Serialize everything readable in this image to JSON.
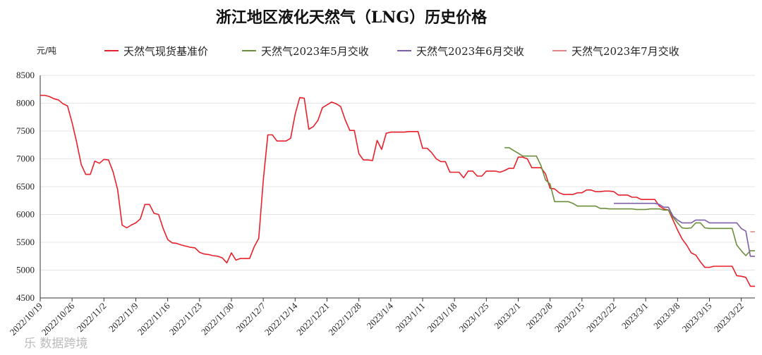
{
  "chart_data": {
    "type": "line",
    "title": "浙江地区液化天然气（LNG）历史价格",
    "unit_label": "元/吨",
    "ylim": [
      4500,
      8500
    ],
    "ytick_values": [
      4500,
      5000,
      5500,
      6000,
      6500,
      7000,
      7500,
      8000,
      8500
    ],
    "ytick_labels": [
      "4500",
      "5000",
      "5500",
      "6000",
      "6500",
      "7000",
      "7500",
      "8000",
      "8500"
    ],
    "xlim": [
      "2022-10-19",
      "2023-03-25"
    ],
    "xtick_labels": [
      "2022/10/19",
      "2022/10/26",
      "2022/11/2",
      "2022/11/9",
      "2022/11/16",
      "2022/11/23",
      "2022/11/30",
      "2022/12/7",
      "2022/12/14",
      "2022/12/21",
      "2022/12/28",
      "2023/1/4",
      "2023/1/11",
      "2023/1/18",
      "2023/1/25",
      "2023/2/1",
      "2023/2/8",
      "2023/2/15",
      "2023/2/22",
      "2023/3/1",
      "2023/3/8",
      "2023/3/15",
      "2023/3/22"
    ],
    "xtick_dates": [
      "2022-10-19",
      "2022-10-26",
      "2022-11-02",
      "2022-11-09",
      "2022-11-16",
      "2022-11-23",
      "2022-11-30",
      "2022-12-07",
      "2022-12-14",
      "2022-12-21",
      "2022-12-28",
      "2023-01-04",
      "2023-01-11",
      "2023-01-18",
      "2023-01-25",
      "2023-02-01",
      "2023-02-08",
      "2023-02-15",
      "2023-02-22",
      "2023-03-01",
      "2023-03-08",
      "2023-03-15",
      "2023-03-22"
    ],
    "grid": true,
    "legend_position": "top",
    "series": [
      {
        "name": "天然气现货基准价",
        "color": "#e8202a",
        "points": [
          [
            "2022-10-19",
            8140
          ],
          [
            "2022-10-20",
            8140
          ],
          [
            "2022-10-21",
            8120
          ],
          [
            "2022-10-22",
            8080
          ],
          [
            "2022-10-23",
            8060
          ],
          [
            "2022-10-24",
            7990
          ],
          [
            "2022-10-25",
            7950
          ],
          [
            "2022-10-26",
            7650
          ],
          [
            "2022-10-27",
            7300
          ],
          [
            "2022-10-28",
            6900
          ],
          [
            "2022-10-29",
            6720
          ],
          [
            "2022-10-30",
            6720
          ],
          [
            "2022-10-31",
            6960
          ],
          [
            "2022-11-01",
            6920
          ],
          [
            "2022-11-02",
            6990
          ],
          [
            "2022-11-03",
            6980
          ],
          [
            "2022-11-04",
            6770
          ],
          [
            "2022-11-05",
            6450
          ],
          [
            "2022-11-06",
            5810
          ],
          [
            "2022-11-07",
            5760
          ],
          [
            "2022-11-08",
            5810
          ],
          [
            "2022-11-09",
            5850
          ],
          [
            "2022-11-10",
            5920
          ],
          [
            "2022-11-11",
            6180
          ],
          [
            "2022-11-12",
            6180
          ],
          [
            "2022-11-13",
            6020
          ],
          [
            "2022-11-14",
            6000
          ],
          [
            "2022-11-15",
            5750
          ],
          [
            "2022-11-16",
            5550
          ],
          [
            "2022-11-17",
            5490
          ],
          [
            "2022-11-18",
            5480
          ],
          [
            "2022-11-19",
            5450
          ],
          [
            "2022-11-20",
            5430
          ],
          [
            "2022-11-21",
            5410
          ],
          [
            "2022-11-22",
            5400
          ],
          [
            "2022-11-23",
            5320
          ],
          [
            "2022-11-24",
            5290
          ],
          [
            "2022-11-25",
            5280
          ],
          [
            "2022-11-26",
            5260
          ],
          [
            "2022-11-27",
            5250
          ],
          [
            "2022-11-28",
            5220
          ],
          [
            "2022-11-29",
            5130
          ],
          [
            "2022-11-30",
            5310
          ],
          [
            "2022-12-01",
            5180
          ],
          [
            "2022-12-02",
            5210
          ],
          [
            "2022-12-03",
            5210
          ],
          [
            "2022-12-04",
            5210
          ],
          [
            "2022-12-05",
            5420
          ],
          [
            "2022-12-06",
            5570
          ],
          [
            "2022-12-07",
            6620
          ],
          [
            "2022-12-08",
            7430
          ],
          [
            "2022-12-09",
            7430
          ],
          [
            "2022-12-10",
            7320
          ],
          [
            "2022-12-11",
            7320
          ],
          [
            "2022-12-12",
            7320
          ],
          [
            "2022-12-13",
            7370
          ],
          [
            "2022-12-14",
            7800
          ],
          [
            "2022-12-15",
            8100
          ],
          [
            "2022-12-16",
            8090
          ],
          [
            "2022-12-17",
            7530
          ],
          [
            "2022-12-18",
            7580
          ],
          [
            "2022-12-19",
            7690
          ],
          [
            "2022-12-20",
            7920
          ],
          [
            "2022-12-21",
            7970
          ],
          [
            "2022-12-22",
            8020
          ],
          [
            "2022-12-23",
            7990
          ],
          [
            "2022-12-24",
            7940
          ],
          [
            "2022-12-25",
            7700
          ],
          [
            "2022-12-26",
            7510
          ],
          [
            "2022-12-27",
            7510
          ],
          [
            "2022-12-28",
            7090
          ],
          [
            "2022-12-29",
            6980
          ],
          [
            "2022-12-30",
            6980
          ],
          [
            "2022-12-31",
            6970
          ],
          [
            "2023-01-01",
            7330
          ],
          [
            "2023-01-02",
            7170
          ],
          [
            "2023-01-03",
            7460
          ],
          [
            "2023-01-04",
            7480
          ],
          [
            "2023-01-05",
            7480
          ],
          [
            "2023-01-06",
            7480
          ],
          [
            "2023-01-07",
            7480
          ],
          [
            "2023-01-08",
            7490
          ],
          [
            "2023-01-09",
            7490
          ],
          [
            "2023-01-10",
            7490
          ],
          [
            "2023-01-11",
            7190
          ],
          [
            "2023-01-12",
            7190
          ],
          [
            "2023-01-13",
            7110
          ],
          [
            "2023-01-14",
            7000
          ],
          [
            "2023-01-15",
            6950
          ],
          [
            "2023-01-16",
            6950
          ],
          [
            "2023-01-17",
            6760
          ],
          [
            "2023-01-18",
            6760
          ],
          [
            "2023-01-19",
            6760
          ],
          [
            "2023-01-20",
            6660
          ],
          [
            "2023-01-21",
            6780
          ],
          [
            "2023-01-22",
            6780
          ],
          [
            "2023-01-23",
            6690
          ],
          [
            "2023-01-24",
            6690
          ],
          [
            "2023-01-25",
            6780
          ],
          [
            "2023-01-26",
            6780
          ],
          [
            "2023-01-27",
            6780
          ],
          [
            "2023-01-28",
            6760
          ],
          [
            "2023-01-29",
            6790
          ],
          [
            "2023-01-30",
            6830
          ],
          [
            "2023-01-31",
            6830
          ],
          [
            "2023-02-01",
            7030
          ],
          [
            "2023-02-02",
            7030
          ],
          [
            "2023-02-03",
            7000
          ],
          [
            "2023-02-04",
            6840
          ],
          [
            "2023-02-05",
            6840
          ],
          [
            "2023-02-06",
            6840
          ],
          [
            "2023-02-07",
            6730
          ],
          [
            "2023-02-08",
            6470
          ],
          [
            "2023-02-09",
            6460
          ],
          [
            "2023-02-10",
            6390
          ],
          [
            "2023-02-11",
            6360
          ],
          [
            "2023-02-12",
            6360
          ],
          [
            "2023-02-13",
            6360
          ],
          [
            "2023-02-14",
            6390
          ],
          [
            "2023-02-15",
            6390
          ],
          [
            "2023-02-16",
            6440
          ],
          [
            "2023-02-17",
            6440
          ],
          [
            "2023-02-18",
            6410
          ],
          [
            "2023-02-19",
            6410
          ],
          [
            "2023-02-20",
            6420
          ],
          [
            "2023-02-21",
            6420
          ],
          [
            "2023-02-22",
            6410
          ],
          [
            "2023-02-23",
            6350
          ],
          [
            "2023-02-24",
            6350
          ],
          [
            "2023-02-25",
            6350
          ],
          [
            "2023-02-26",
            6310
          ],
          [
            "2023-02-27",
            6310
          ],
          [
            "2023-02-28",
            6270
          ],
          [
            "2023-03-01",
            6270
          ],
          [
            "2023-03-02",
            6270
          ],
          [
            "2023-03-03",
            6270
          ],
          [
            "2023-03-04",
            6150
          ],
          [
            "2023-03-05",
            6100
          ],
          [
            "2023-03-06",
            6080
          ],
          [
            "2023-03-07",
            5900
          ],
          [
            "2023-03-08",
            5720
          ],
          [
            "2023-03-09",
            5560
          ],
          [
            "2023-03-10",
            5450
          ],
          [
            "2023-03-11",
            5310
          ],
          [
            "2023-03-12",
            5270
          ],
          [
            "2023-03-13",
            5150
          ],
          [
            "2023-03-14",
            5050
          ],
          [
            "2023-03-15",
            5050
          ],
          [
            "2023-03-16",
            5070
          ],
          [
            "2023-03-17",
            5070
          ],
          [
            "2023-03-18",
            5070
          ],
          [
            "2023-03-19",
            5070
          ],
          [
            "2023-03-20",
            5070
          ],
          [
            "2023-03-21",
            4900
          ],
          [
            "2023-03-22",
            4890
          ],
          [
            "2023-03-23",
            4870
          ],
          [
            "2023-03-24",
            4710
          ],
          [
            "2023-03-25",
            4710
          ]
        ]
      },
      {
        "name": "天然气2023年5月交收",
        "color": "#6b8e3a",
        "points": [
          [
            "2023-01-29",
            7200
          ],
          [
            "2023-01-30",
            7200
          ],
          [
            "2023-01-31",
            7150
          ],
          [
            "2023-02-01",
            7100
          ],
          [
            "2023-02-02",
            7050
          ],
          [
            "2023-02-03",
            7050
          ],
          [
            "2023-02-04",
            7050
          ],
          [
            "2023-02-05",
            7050
          ],
          [
            "2023-02-06",
            6880
          ],
          [
            "2023-02-07",
            6620
          ],
          [
            "2023-02-08",
            6550
          ],
          [
            "2023-02-09",
            6230
          ],
          [
            "2023-02-10",
            6230
          ],
          [
            "2023-02-11",
            6230
          ],
          [
            "2023-02-12",
            6230
          ],
          [
            "2023-02-13",
            6200
          ],
          [
            "2023-02-14",
            6150
          ],
          [
            "2023-02-15",
            6150
          ],
          [
            "2023-02-16",
            6150
          ],
          [
            "2023-02-17",
            6150
          ],
          [
            "2023-02-18",
            6150
          ],
          [
            "2023-02-19",
            6110
          ],
          [
            "2023-02-20",
            6110
          ],
          [
            "2023-02-21",
            6100
          ],
          [
            "2023-02-22",
            6100
          ],
          [
            "2023-02-23",
            6100
          ],
          [
            "2023-02-24",
            6100
          ],
          [
            "2023-02-25",
            6100
          ],
          [
            "2023-02-26",
            6100
          ],
          [
            "2023-02-27",
            6090
          ],
          [
            "2023-02-28",
            6090
          ],
          [
            "2023-03-01",
            6090
          ],
          [
            "2023-03-02",
            6100
          ],
          [
            "2023-03-03",
            6100
          ],
          [
            "2023-03-04",
            6100
          ],
          [
            "2023-03-05",
            6080
          ],
          [
            "2023-03-06",
            6080
          ],
          [
            "2023-03-07",
            5950
          ],
          [
            "2023-03-08",
            5850
          ],
          [
            "2023-03-09",
            5760
          ],
          [
            "2023-03-10",
            5750
          ],
          [
            "2023-03-11",
            5760
          ],
          [
            "2023-03-12",
            5850
          ],
          [
            "2023-03-13",
            5850
          ],
          [
            "2023-03-14",
            5760
          ],
          [
            "2023-03-15",
            5750
          ],
          [
            "2023-03-16",
            5750
          ],
          [
            "2023-03-17",
            5750
          ],
          [
            "2023-03-18",
            5750
          ],
          [
            "2023-03-19",
            5750
          ],
          [
            "2023-03-20",
            5750
          ],
          [
            "2023-03-21",
            5450
          ],
          [
            "2023-03-22",
            5350
          ],
          [
            "2023-03-23",
            5260
          ],
          [
            "2023-03-24",
            5350
          ],
          [
            "2023-03-25",
            5350
          ]
        ]
      },
      {
        "name": "天然气2023年6月交收",
        "color": "#7e5fa8",
        "points": [
          [
            "2023-02-22",
            6200
          ],
          [
            "2023-02-23",
            6200
          ],
          [
            "2023-02-24",
            6200
          ],
          [
            "2023-02-25",
            6200
          ],
          [
            "2023-02-26",
            6200
          ],
          [
            "2023-02-27",
            6200
          ],
          [
            "2023-02-28",
            6200
          ],
          [
            "2023-03-01",
            6200
          ],
          [
            "2023-03-02",
            6200
          ],
          [
            "2023-03-03",
            6200
          ],
          [
            "2023-03-04",
            6180
          ],
          [
            "2023-03-05",
            6130
          ],
          [
            "2023-03-06",
            6130
          ],
          [
            "2023-03-07",
            5970
          ],
          [
            "2023-03-08",
            5900
          ],
          [
            "2023-03-09",
            5850
          ],
          [
            "2023-03-10",
            5850
          ],
          [
            "2023-03-11",
            5850
          ],
          [
            "2023-03-12",
            5900
          ],
          [
            "2023-03-13",
            5900
          ],
          [
            "2023-03-14",
            5900
          ],
          [
            "2023-03-15",
            5850
          ],
          [
            "2023-03-16",
            5850
          ],
          [
            "2023-03-17",
            5850
          ],
          [
            "2023-03-18",
            5850
          ],
          [
            "2023-03-19",
            5850
          ],
          [
            "2023-03-20",
            5850
          ],
          [
            "2023-03-21",
            5850
          ],
          [
            "2023-03-22",
            5750
          ],
          [
            "2023-03-23",
            5700
          ],
          [
            "2023-03-24",
            5250
          ],
          [
            "2023-03-25",
            5250
          ]
        ]
      },
      {
        "name": "天然气2023年7月交收",
        "color": "#e58585",
        "points": [
          [
            "2023-03-24",
            5690
          ],
          [
            "2023-03-25",
            5690
          ]
        ]
      }
    ]
  },
  "watermark": "乐 数据跨境"
}
